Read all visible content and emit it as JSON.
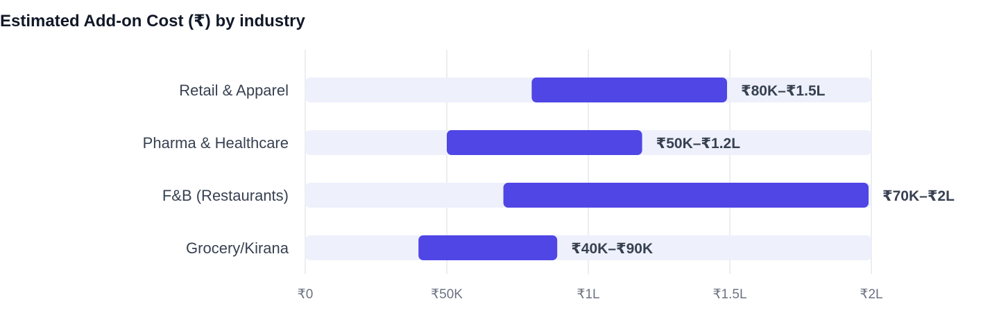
{
  "chart_data": {
    "type": "bar",
    "title": "Estimated Add-on Cost (₹) by industry",
    "orientation": "horizontal",
    "subtype": "range",
    "xlim": [
      0,
      200000
    ],
    "x_ticks": [
      {
        "value": 0,
        "label": "₹0"
      },
      {
        "value": 50000,
        "label": "₹50K"
      },
      {
        "value": 100000,
        "label": "₹1L"
      },
      {
        "value": 150000,
        "label": "₹1.5L"
      },
      {
        "value": 200000,
        "label": "₹2L"
      }
    ],
    "grid": "vertical",
    "bars": [
      {
        "category": "Retail & Apparel",
        "low": 80000,
        "high": 150000,
        "label": "₹80K–₹1.5L"
      },
      {
        "category": "Pharma & Healthcare",
        "low": 50000,
        "high": 120000,
        "label": "₹50K–₹1.2L"
      },
      {
        "category": "F&B (Restaurants)",
        "low": 70000,
        "high": 200000,
        "label": "₹70K–₹2L"
      },
      {
        "category": "Grocery/Kirana",
        "low": 40000,
        "high": 90000,
        "label": "₹40K–₹90K"
      }
    ],
    "colors": {
      "bar": "#4f46e5",
      "track": "#eef1fc",
      "grid": "#e5e7eb"
    }
  }
}
